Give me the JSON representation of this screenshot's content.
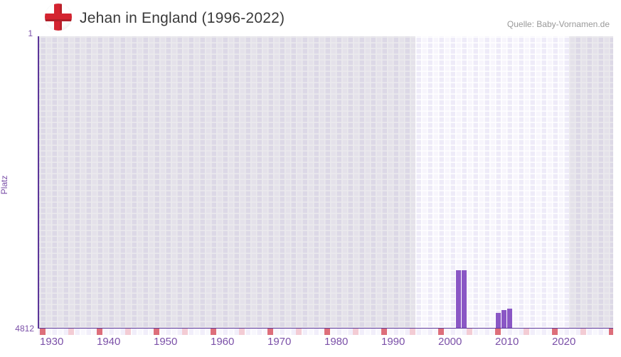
{
  "header": {
    "flag_icon": "england-flag",
    "title": "Jehan in England (1996-2022)",
    "source": "Quelle: Baby-Vornamen.de"
  },
  "y_axis_panel": {
    "label": "Platz",
    "top_tick": "1",
    "bottom_tick": "4812"
  },
  "chart_data": {
    "type": "bar",
    "title": "Jehan in England (1996-2022)",
    "xlabel": "",
    "ylabel": "Platz",
    "y_axis": {
      "min": 1,
      "max": 4812,
      "inverted": true,
      "ticks": [
        "1",
        "4812"
      ]
    },
    "x_axis": {
      "start": 1930,
      "end": 2030,
      "major_tick_step": 10,
      "minor_tick_step": 5,
      "tick_labels": [
        "1930",
        "1940",
        "1950",
        "1960",
        "1970",
        "1980",
        "1990",
        "2000",
        "2010",
        "2020"
      ]
    },
    "data_range": {
      "from": 1996,
      "to": 2022
    },
    "legend": false,
    "grid": true,
    "series": [
      {
        "name": "Jehan",
        "points": [
          {
            "year": 2003,
            "rank": 3861
          },
          {
            "year": 2004,
            "rank": 3861
          },
          {
            "year": 2010,
            "rank": 4561
          },
          {
            "year": 2011,
            "rank": 4514
          },
          {
            "year": 2012,
            "rank": 4491
          }
        ]
      }
    ]
  },
  "colors": {
    "bar": "#8a57c5",
    "axis_line": "#5c3599",
    "axis_text": "#7b50a8",
    "major_tick_cell": "#dd6e7a",
    "minor_tick_cell": "#f3ccd4",
    "plot_background": "#eeebf8",
    "dim_overlay": "#dedae8",
    "title_text": "#3a3a3a",
    "source_text": "#999999",
    "flag_cross": "#d42430"
  }
}
